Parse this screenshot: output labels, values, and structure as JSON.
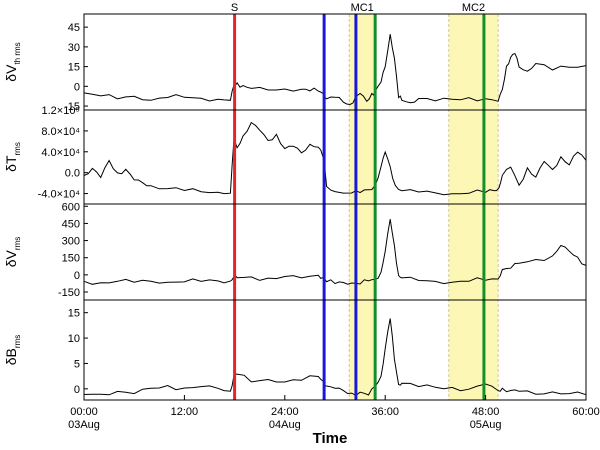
{
  "chart_data": {
    "type": "line",
    "xlabel": "Time",
    "xlim": [
      0,
      60
    ],
    "x_ticks": [
      {
        "value": 0,
        "label": "00:00",
        "date": "03Aug"
      },
      {
        "value": 12,
        "label": "12:00",
        "date": ""
      },
      {
        "value": 24,
        "label": "24:00",
        "date": "04Aug"
      },
      {
        "value": 36,
        "label": "36:00",
        "date": ""
      },
      {
        "value": 48,
        "label": "48:00",
        "date": "05Aug"
      },
      {
        "value": 60,
        "label": "60:00",
        "date": ""
      }
    ],
    "event_lines": [
      {
        "label": "S",
        "x": 18.0,
        "color": "#e8232b"
      },
      {
        "label": "",
        "x": 28.7,
        "color": "#1a1ad6"
      },
      {
        "label": "",
        "x": 32.5,
        "color": "#1a1ad6"
      },
      {
        "label": "",
        "x": 34.8,
        "color": "#14902a"
      },
      {
        "label": "",
        "x": 47.8,
        "color": "#14902a"
      }
    ],
    "shaded_regions": [
      {
        "label": "MC1",
        "x0": 31.7,
        "x1": 34.8,
        "color": "#fdf7b6"
      },
      {
        "label": "MC2",
        "x0": 43.6,
        "x1": 49.5,
        "color": "#fdf7b6"
      }
    ],
    "panels": [
      {
        "ylabel_main": "δV",
        "ylabel_sub": "th rms",
        "ylim": [
          -18,
          55
        ],
        "yticks": [
          -15,
          0,
          15,
          30,
          45
        ],
        "ytick_labels": [
          "-15",
          "0",
          "15",
          "30",
          "45"
        ],
        "series": [
          {
            "x": [
              0,
              2,
              4,
              6,
              8,
              10,
              12,
              14,
              16,
              17.5,
              17.9,
              18.3,
              19,
              20,
              22,
              24,
              26,
              27,
              28,
              28.6,
              29,
              30,
              31,
              31.8,
              32.5,
              33,
              33.8,
              34.4,
              34.8,
              35.5,
              36,
              36.6,
              37.1,
              37.6,
              38,
              39,
              40,
              42,
              44,
              46,
              48,
              49.5,
              50,
              50.5,
              51,
              51.5,
              52,
              53,
              54,
              56,
              58,
              60
            ],
            "y": [
              -5,
              -7,
              -9,
              -7,
              -10,
              -8,
              -8,
              -9,
              -10,
              -11,
              0,
              2,
              0,
              -2,
              -3,
              -2,
              -2,
              -3,
              -3,
              -5,
              -9,
              -8,
              -12,
              -14,
              -8,
              -6,
              -12,
              -6,
              -4,
              3,
              15,
              40,
              22,
              -8,
              -10,
              -12,
              -9,
              -11,
              -10,
              -9,
              -10,
              -12,
              -3,
              15,
              22,
              25,
              15,
              12,
              18,
              13,
              15,
              16
            ]
          }
        ]
      },
      {
        "ylabel_main": "δT",
        "ylabel_sub": "rms",
        "ylim": [
          -60000,
          120000
        ],
        "yticks": [
          -40000,
          0,
          40000,
          80000,
          120000
        ],
        "ytick_labels": [
          "-4.0×10⁴",
          "0.0",
          "4.0×10⁴",
          "8.0×10⁴",
          "1.2×10⁵"
        ],
        "series": [
          {
            "x": [
              0,
              1,
              2,
              3,
              4,
              5,
              6,
              7,
              8,
              10,
              12,
              14,
              16,
              17.5,
              17.9,
              18.3,
              19,
              20,
              21,
              22,
              23,
              24,
              25,
              26,
              27,
              28,
              28.6,
              29,
              30,
              32,
              33,
              34,
              34.8,
              35.5,
              36,
              36.6,
              37.2,
              38,
              40,
              42,
              44,
              46,
              48,
              49,
              49.6,
              50,
              51,
              52,
              53,
              54,
              55,
              56,
              57,
              58,
              59,
              60
            ],
            "y": [
              -5000,
              8000,
              -10000,
              22000,
              -2000,
              5000,
              -15000,
              -20000,
              -25000,
              -30000,
              -33000,
              -35000,
              -36000,
              -38000,
              60000,
              48000,
              70000,
              95000,
              80000,
              60000,
              72000,
              45000,
              50000,
              38000,
              55000,
              50000,
              30000,
              -25000,
              -35000,
              -38000,
              -38000,
              -33000,
              -25000,
              10000,
              38000,
              10000,
              -25000,
              -35000,
              -37000,
              -38000,
              -39000,
              -38000,
              -36000,
              -33000,
              -28000,
              -5000,
              10000,
              -25000,
              8000,
              -10000,
              20000,
              5000,
              30000,
              15000,
              40000,
              25000
            ]
          }
        ]
      },
      {
        "ylabel_main": "δV",
        "ylabel_sub": "rms",
        "ylim": [
          -220,
          620
        ],
        "yticks": [
          -150,
          0,
          150,
          300,
          450,
          600
        ],
        "ytick_labels": [
          "-150",
          "0",
          "150",
          "300",
          "450",
          "600"
        ],
        "series": [
          {
            "x": [
              0,
              2,
              4,
              6,
              8,
              10,
              12,
              14,
              16,
              17.5,
              17.9,
              18.3,
              20,
              22,
              24,
              26,
              28,
              28.6,
              29,
              30,
              31,
              32,
              33,
              34,
              34.8,
              35.5,
              36,
              36.6,
              37.1,
              37.6,
              38,
              40,
              42,
              44,
              46,
              48,
              49.5,
              50,
              51,
              52,
              54,
              56,
              57,
              58,
              59,
              60
            ],
            "y": [
              -60,
              -70,
              -55,
              -60,
              -50,
              -58,
              -55,
              -52,
              -50,
              -55,
              -20,
              -30,
              -25,
              -35,
              -20,
              -30,
              -5,
              -20,
              -55,
              -70,
              -60,
              -65,
              -75,
              -50,
              -40,
              20,
              200,
              480,
              250,
              -10,
              -30,
              -50,
              -55,
              -60,
              -50,
              -40,
              -30,
              50,
              60,
              100,
              130,
              160,
              250,
              200,
              150,
              80
            ]
          }
        ]
      },
      {
        "ylabel_main": "δB",
        "ylabel_sub": "rms",
        "ylim": [
          -2.2,
          17.5
        ],
        "yticks": [
          0,
          5,
          10,
          15
        ],
        "ytick_labels": [
          "0",
          "5",
          "10",
          "15"
        ],
        "series": [
          {
            "x": [
              0,
              2,
              4,
              6,
              8,
              10,
              12,
              14,
              16,
              17.5,
              17.9,
              18.3,
              20,
              22,
              24,
              26,
              28,
              28.6,
              29,
              30,
              31,
              32,
              33,
              34,
              34.8,
              35.5,
              36,
              36.6,
              37.1,
              37.6,
              38,
              40,
              42,
              44,
              46,
              48,
              49.5,
              50,
              51,
              52,
              54,
              56,
              58,
              60
            ],
            "y": [
              -1,
              -1,
              -0.5,
              -1,
              0,
              0.5,
              0,
              0.3,
              0,
              -0.5,
              2.5,
              3,
              1.5,
              2,
              1.5,
              1.8,
              2.5,
              1.5,
              0.5,
              0,
              -0.5,
              -1,
              -0.8,
              -1.3,
              0.5,
              2.5,
              8,
              14,
              6,
              1,
              1.2,
              0.5,
              0.3,
              0.2,
              -0.2,
              0.8,
              -0.5,
              0,
              -0.4,
              -0.5,
              -1,
              -0.5,
              -0.8,
              -1
            ]
          }
        ]
      }
    ]
  }
}
